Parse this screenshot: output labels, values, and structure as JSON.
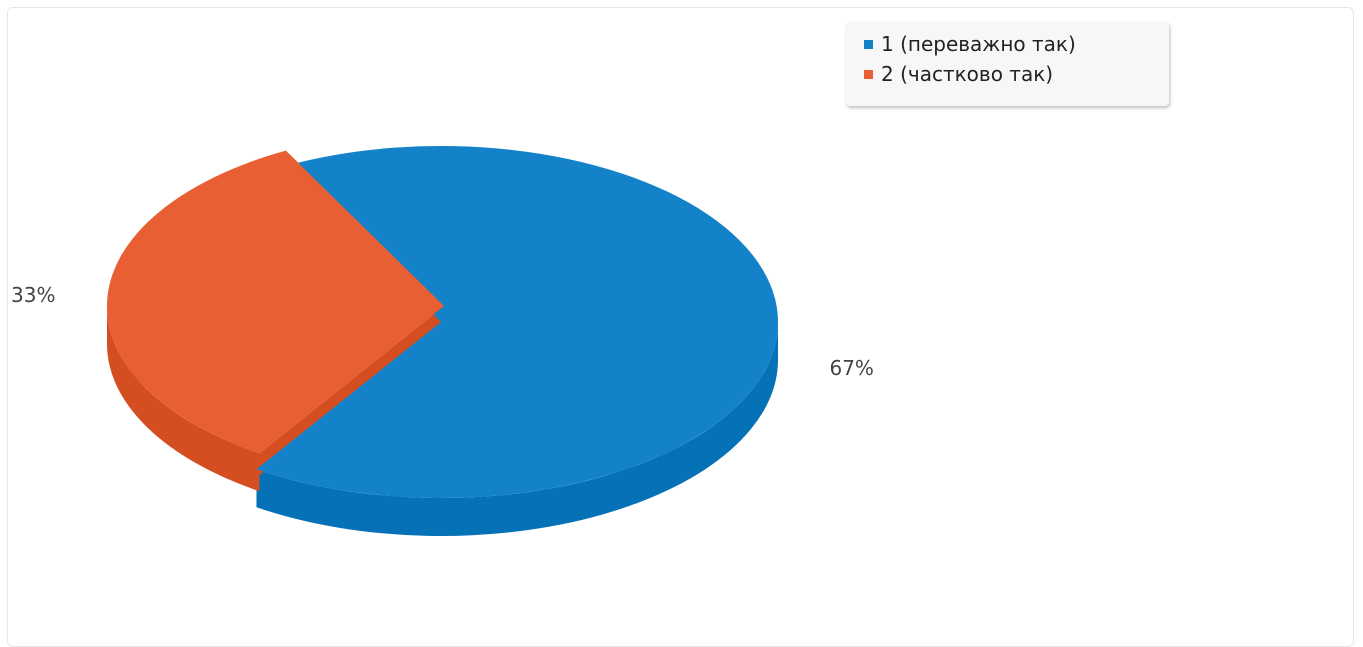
{
  "chart_data": {
    "type": "pie",
    "categories": [
      "1 (переважно так)",
      "2 (частково так)"
    ],
    "values": [
      67,
      33
    ],
    "value_labels": [
      "67%",
      "33%"
    ],
    "colors": [
      "#1382c8",
      "#e85f33"
    ],
    "side_colors": [
      "#0572b8",
      "#d54e21"
    ],
    "legend_position": "top-right",
    "style": "3d",
    "title": ""
  }
}
